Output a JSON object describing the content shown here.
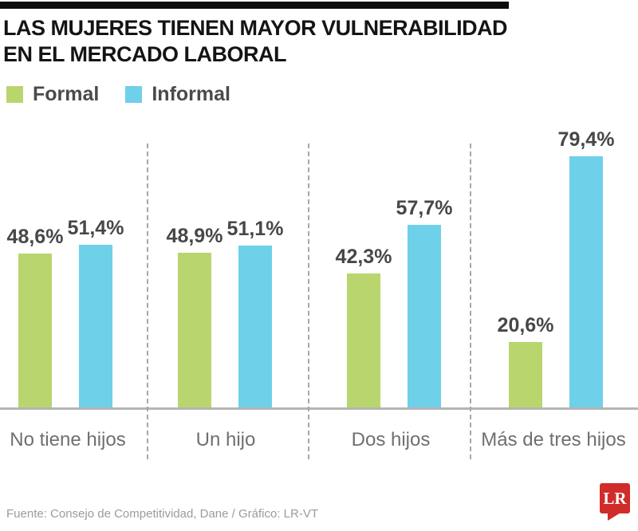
{
  "header": {
    "title_line1": "LAS MUJERES TIENEN MAYOR VULNERABILIDAD",
    "title_line2": "EN EL MERCADO LABORAL"
  },
  "legend": {
    "items": [
      {
        "label": "Formal",
        "color": "#b9d56e"
      },
      {
        "label": "Informal",
        "color": "#6ed0e9"
      }
    ]
  },
  "chart_data": {
    "type": "bar",
    "title": "LAS MUJERES TIENEN MAYOR VULNERABILIDAD EN EL MERCADO LABORAL",
    "categories": [
      "No tiene hijos",
      "Un hijo",
      "Dos hijos",
      "Más de tres hijos"
    ],
    "series": [
      {
        "name": "Formal",
        "color": "#b9d56e",
        "values": [
          48.6,
          48.9,
          42.3,
          20.6
        ],
        "value_labels": [
          "48,6%",
          "48,9%",
          "42,3%",
          "20,6%"
        ]
      },
      {
        "name": "Informal",
        "color": "#6ed0e9",
        "values": [
          51.4,
          51.1,
          57.7,
          79.4
        ],
        "value_labels": [
          "51,4%",
          "51,1%",
          "57,7%",
          "79,4%"
        ]
      }
    ],
    "ylim": [
      0,
      100
    ],
    "grid": false,
    "legend_position": "top-left",
    "value_label_format": "decimal comma + percent sign",
    "separator_style": "vertical dashed lines between category groups"
  },
  "footer": {
    "source": "Fuente: Consejo de Competitividad, Dane / Gráfico: LR-VT",
    "logo_text": "LR",
    "logo_color": "#d02c2a"
  }
}
